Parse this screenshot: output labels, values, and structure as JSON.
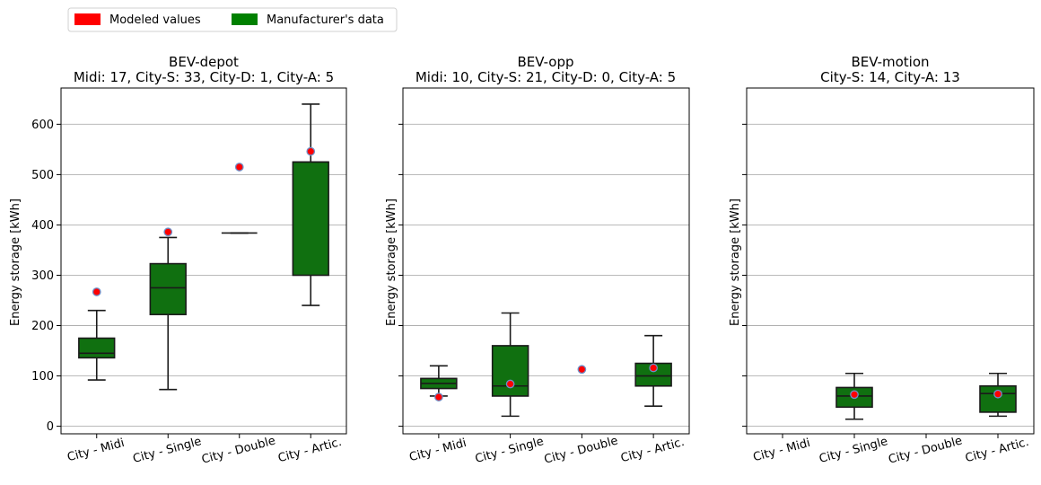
{
  "legend": {
    "placement": "top-left",
    "entries": [
      {
        "label": "Modeled values",
        "color": "#ff0000"
      },
      {
        "label": "Manufacturer's data",
        "color": "#008000"
      }
    ]
  },
  "colors": {
    "box_fill": "#107010",
    "box_edge": "#1a1a1a",
    "point_fill": "#ff0000",
    "point_edge": "#6e8fc8",
    "grid": "#b0b0b0"
  },
  "chart_data": [
    {
      "type": "box",
      "title": "BEV-depot",
      "subtitle": "Midi: 17, City-S: 33, City-D: 1, City-A: 5",
      "ylabel": "Energy storage [kWh]",
      "ylim": [
        -15,
        672
      ],
      "yticks": [
        0,
        100,
        200,
        300,
        400,
        500,
        600
      ],
      "grid": "y",
      "categories": [
        "City - Midi",
        "City - Single",
        "City - Double",
        "City - Artic."
      ],
      "boxes": [
        {
          "category": "City - Midi",
          "whisker_low": 92,
          "q1": 136,
          "median": 145,
          "q3": 175,
          "whisker_high": 230
        },
        {
          "category": "City - Single",
          "whisker_low": 73,
          "q1": 222,
          "median": 275,
          "q3": 323,
          "whisker_high": 375
        },
        {
          "category": "City - Double",
          "whisker_low": 384,
          "q1": 384,
          "median": 384,
          "q3": 384,
          "whisker_high": 384
        },
        {
          "category": "City - Artic.",
          "whisker_low": 240,
          "q1": 300,
          "median": 525,
          "q3": 525,
          "whisker_high": 640
        }
      ],
      "modeled": [
        {
          "category": "City - Midi",
          "value": 267
        },
        {
          "category": "City - Single",
          "value": 386
        },
        {
          "category": "City - Double",
          "value": 515
        },
        {
          "category": "City - Artic.",
          "value": 546
        }
      ]
    },
    {
      "type": "box",
      "title": "BEV-opp",
      "subtitle": "Midi: 10, City-S: 21, City-D: 0, City-A: 5",
      "ylabel": "Energy storage [kWh]",
      "ylim": [
        -15,
        672
      ],
      "yticks": [
        0,
        100,
        200,
        300,
        400,
        500,
        600
      ],
      "grid": "y",
      "categories": [
        "City - Midi",
        "City - Single",
        "City - Double",
        "City - Artic."
      ],
      "boxes": [
        {
          "category": "City - Midi",
          "whisker_low": 60,
          "q1": 75,
          "median": 85,
          "q3": 95,
          "whisker_high": 120
        },
        {
          "category": "City - Single",
          "whisker_low": 20,
          "q1": 60,
          "median": 80,
          "q3": 160,
          "whisker_high": 225
        },
        {
          "category": "City - Artic.",
          "whisker_low": 40,
          "q1": 80,
          "median": 100,
          "q3": 125,
          "whisker_high": 180
        }
      ],
      "modeled": [
        {
          "category": "City - Midi",
          "value": 58
        },
        {
          "category": "City - Single",
          "value": 84
        },
        {
          "category": "City - Double",
          "value": 113
        },
        {
          "category": "City - Artic.",
          "value": 116
        }
      ]
    },
    {
      "type": "box",
      "title": "BEV-motion",
      "subtitle": "City-S: 14, City-A: 13",
      "ylabel": "Energy storage [kWh]",
      "ylim": [
        -15,
        672
      ],
      "yticks": [
        0,
        100,
        200,
        300,
        400,
        500,
        600
      ],
      "grid": "y",
      "categories": [
        "City - Midi",
        "City - Single",
        "City - Double",
        "City - Artic."
      ],
      "boxes": [
        {
          "category": "City - Single",
          "whisker_low": 14,
          "q1": 38,
          "median": 60,
          "q3": 77,
          "whisker_high": 105
        },
        {
          "category": "City - Artic.",
          "whisker_low": 20,
          "q1": 28,
          "median": 65,
          "q3": 80,
          "whisker_high": 105
        }
      ],
      "modeled": [
        {
          "category": "City - Single",
          "value": 63
        },
        {
          "category": "City - Artic.",
          "value": 64
        }
      ]
    }
  ]
}
